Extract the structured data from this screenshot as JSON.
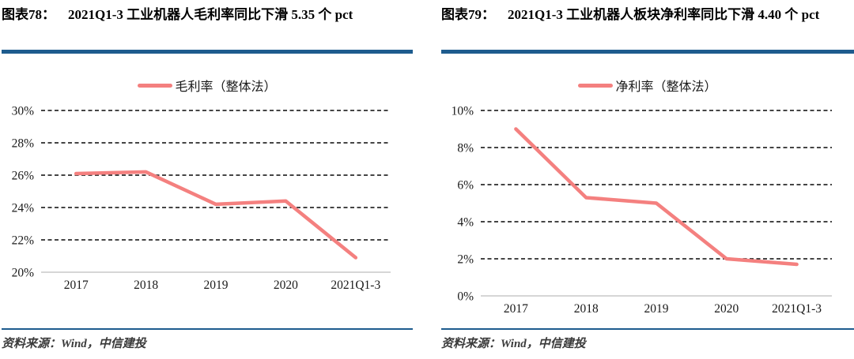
{
  "panels": [
    {
      "figure_label": "图表78：",
      "figure_title": "2021Q1-3 工业机器人毛利率同比下滑 5.35 个 pct",
      "source": "资料来源：Wind，中信建投"
    },
    {
      "figure_label": "图表79：",
      "figure_title": "2021Q1-3 工业机器人板块净利率同比下滑 4.40 个 pct",
      "source": "资料来源：Wind，中信建投"
    }
  ],
  "chart_data": [
    {
      "type": "line",
      "title": "2021Q1-3 工业机器人毛利率同比下滑 5.35 个 pct",
      "legend": [
        "毛利率（整体法）"
      ],
      "legend_position": "top-center",
      "categories": [
        "2017",
        "2018",
        "2019",
        "2020",
        "2021Q1-3"
      ],
      "series": [
        {
          "name": "毛利率（整体法）",
          "values": [
            26.1,
            26.2,
            24.2,
            24.4,
            20.9
          ]
        }
      ],
      "ylim": [
        20,
        30
      ],
      "ytick_step": 2,
      "yticks": [
        "20%",
        "22%",
        "24%",
        "26%",
        "28%",
        "30%"
      ],
      "ytick_suffix": "%",
      "grid": "dashed-horizontal",
      "line_color": "#F4807F"
    },
    {
      "type": "line",
      "title": "2021Q1-3 工业机器人板块净利率同比下滑 4.40 个 pct",
      "legend": [
        "净利率（整体法）"
      ],
      "legend_position": "top-center",
      "categories": [
        "2017",
        "2018",
        "2019",
        "2020",
        "2021Q1-3"
      ],
      "series": [
        {
          "name": "净利率（整体法）",
          "values": [
            9.0,
            5.3,
            5.0,
            2.0,
            1.7
          ]
        }
      ],
      "ylim": [
        0,
        10
      ],
      "ytick_step": 2,
      "yticks": [
        "0%",
        "2%",
        "4%",
        "6%",
        "8%",
        "10%"
      ],
      "ytick_suffix": "%",
      "grid": "dashed-horizontal",
      "line_color": "#F4807F"
    }
  ],
  "colors": {
    "accent_bar": "#1E5C8E",
    "line": "#F4807F",
    "grid": "#2b2b2b",
    "baseline": "#c8c8c8",
    "text": "#1a1a1a",
    "source_text": "#3b3b3b"
  }
}
